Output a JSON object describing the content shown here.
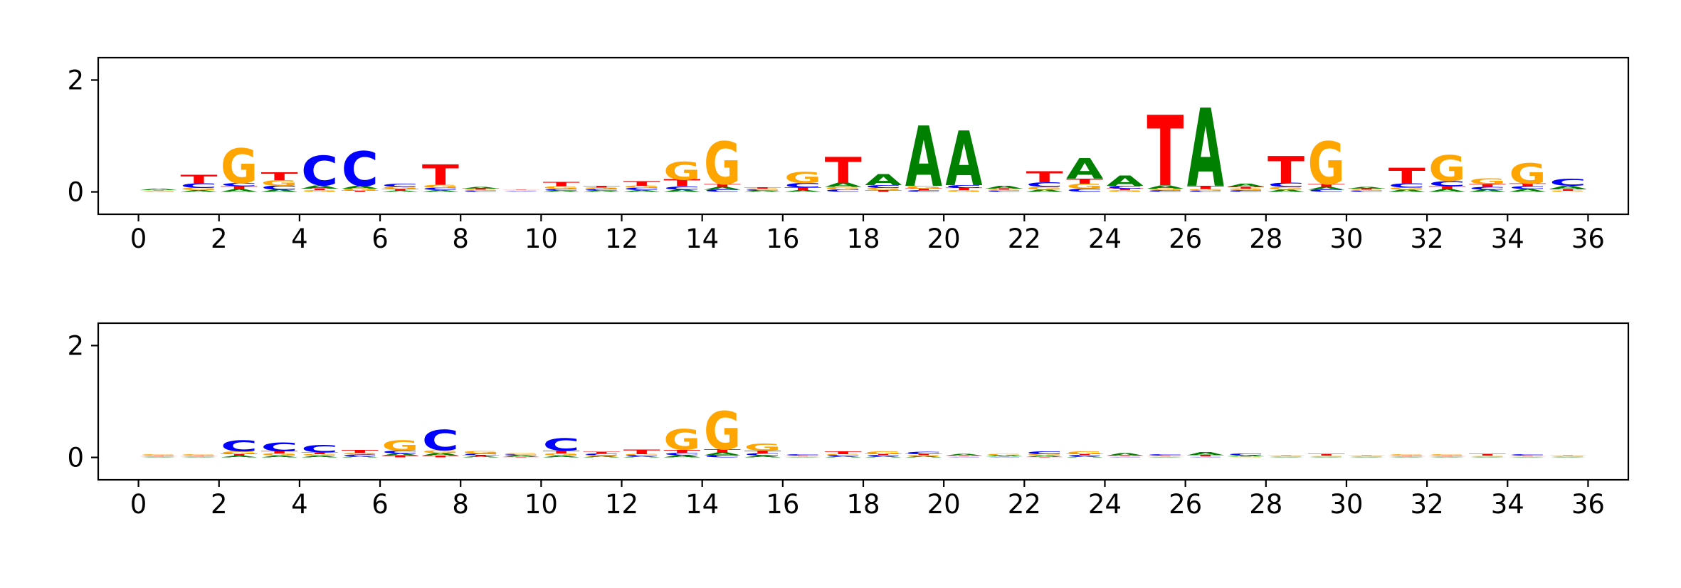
{
  "chart_data": [
    {
      "type": "sequence-logo",
      "title": "",
      "xlabel": "",
      "ylabel": "",
      "xlim": [
        -1,
        37
      ],
      "ylim": [
        -0.4,
        2.4
      ],
      "x_ticks": [
        "0",
        "2",
        "4",
        "6",
        "8",
        "10",
        "12",
        "14",
        "16",
        "18",
        "20",
        "22",
        "24",
        "26",
        "28",
        "30",
        "32",
        "34",
        "36"
      ],
      "y_ticks": [
        "0",
        "2"
      ],
      "colors": {
        "A": "#008000",
        "C": "#0000ff",
        "G": "#ffa500",
        "T": "#ff0000"
      },
      "positions": [
        {
          "x": 0,
          "letters": {
            "A": 0.02,
            "C": 0.01,
            "G": 0.01,
            "T": 0.01
          }
        },
        {
          "x": 1,
          "letters": {
            "A": 0.03,
            "C": 0.08,
            "G": 0.04,
            "T": 0.16
          }
        },
        {
          "x": 2,
          "letters": {
            "A": 0.05,
            "C": 0.06,
            "G": 0.62,
            "T": 0.05
          }
        },
        {
          "x": 3,
          "letters": {
            "A": 0.04,
            "C": 0.07,
            "G": 0.1,
            "T": 0.14
          }
        },
        {
          "x": 4,
          "letters": {
            "A": 0.06,
            "C": 0.53,
            "G": 0.03,
            "T": 0.03
          }
        },
        {
          "x": 5,
          "letters": {
            "A": 0.05,
            "C": 0.62,
            "G": 0.04,
            "T": 0.02
          }
        },
        {
          "x": 6,
          "letters": {
            "A": 0.02,
            "C": 0.06,
            "G": 0.04,
            "T": 0.03
          }
        },
        {
          "x": 7,
          "letters": {
            "A": 0.03,
            "C": 0.04,
            "G": 0.06,
            "T": 0.36
          }
        },
        {
          "x": 8,
          "letters": {
            "A": 0.03,
            "C": 0.02,
            "G": 0.02,
            "T": 0.02
          }
        },
        {
          "x": 9,
          "letters": {
            "A": 0.01,
            "C": 0.01,
            "G": 0.01,
            "T": 0.01
          }
        },
        {
          "x": 10,
          "letters": {
            "A": 0.02,
            "C": 0.03,
            "G": 0.05,
            "T": 0.07
          }
        },
        {
          "x": 11,
          "letters": {
            "A": 0.02,
            "C": 0.03,
            "G": 0.03,
            "T": 0.03
          }
        },
        {
          "x": 12,
          "letters": {
            "A": 0.03,
            "C": 0.04,
            "G": 0.04,
            "T": 0.08
          }
        },
        {
          "x": 13,
          "letters": {
            "A": 0.04,
            "C": 0.06,
            "G": 0.32,
            "T": 0.12
          }
        },
        {
          "x": 14,
          "letters": {
            "A": 0.05,
            "C": 0.04,
            "G": 0.76,
            "T": 0.05
          }
        },
        {
          "x": 15,
          "letters": {
            "A": 0.02,
            "C": 0.02,
            "G": 0.02,
            "T": 0.02
          }
        },
        {
          "x": 16,
          "letters": {
            "A": 0.03,
            "C": 0.08,
            "G": 0.2,
            "T": 0.05
          }
        },
        {
          "x": 17,
          "letters": {
            "A": 0.07,
            "C": 0.04,
            "G": 0.05,
            "T": 0.46
          }
        },
        {
          "x": 18,
          "letters": {
            "A": 0.2,
            "C": 0.05,
            "G": 0.04,
            "T": 0.03
          }
        },
        {
          "x": 19,
          "letters": {
            "A": 1.08,
            "C": 0.03,
            "G": 0.05,
            "T": 0.03
          }
        },
        {
          "x": 20,
          "letters": {
            "A": 0.98,
            "C": 0.05,
            "G": 0.03,
            "T": 0.04
          }
        },
        {
          "x": 21,
          "letters": {
            "A": 0.05,
            "C": 0.02,
            "G": 0.02,
            "T": 0.02
          }
        },
        {
          "x": 22,
          "letters": {
            "A": 0.04,
            "C": 0.08,
            "G": 0.05,
            "T": 0.2
          }
        },
        {
          "x": 23,
          "letters": {
            "A": 0.36,
            "C": 0.06,
            "G": 0.09,
            "T": 0.09
          }
        },
        {
          "x": 24,
          "letters": {
            "A": 0.18,
            "C": 0.05,
            "G": 0.03,
            "T": 0.03
          }
        },
        {
          "x": 25,
          "letters": {
            "A": 0.06,
            "C": 0.03,
            "G": 0.03,
            "T": 1.26
          }
        },
        {
          "x": 26,
          "letters": {
            "A": 1.4,
            "C": 0.02,
            "G": 0.03,
            "T": 0.06
          }
        },
        {
          "x": 27,
          "letters": {
            "A": 0.06,
            "C": 0.03,
            "G": 0.03,
            "T": 0.03
          }
        },
        {
          "x": 28,
          "letters": {
            "A": 0.04,
            "C": 0.07,
            "G": 0.05,
            "T": 0.48
          }
        },
        {
          "x": 29,
          "letters": {
            "A": 0.05,
            "C": 0.04,
            "G": 0.76,
            "T": 0.05
          }
        },
        {
          "x": 30,
          "letters": {
            "A": 0.03,
            "C": 0.02,
            "G": 0.02,
            "T": 0.02
          }
        },
        {
          "x": 31,
          "letters": {
            "A": 0.04,
            "C": 0.07,
            "G": 0.04,
            "T": 0.28
          }
        },
        {
          "x": 32,
          "letters": {
            "A": 0.05,
            "C": 0.09,
            "G": 0.46,
            "T": 0.05
          }
        },
        {
          "x": 33,
          "letters": {
            "A": 0.04,
            "C": 0.05,
            "G": 0.1,
            "T": 0.05
          }
        },
        {
          "x": 34,
          "letters": {
            "A": 0.05,
            "C": 0.05,
            "G": 0.36,
            "T": 0.05
          }
        },
        {
          "x": 35,
          "letters": {
            "A": 0.06,
            "C": 0.12,
            "G": 0.02,
            "T": 0.03
          }
        }
      ]
    },
    {
      "type": "sequence-logo",
      "title": "",
      "xlabel": "",
      "ylabel": "",
      "xlim": [
        -1,
        37
      ],
      "ylim": [
        -0.4,
        2.4
      ],
      "x_ticks": [
        "0",
        "2",
        "4",
        "6",
        "8",
        "10",
        "12",
        "14",
        "16",
        "18",
        "20",
        "22",
        "24",
        "26",
        "28",
        "30",
        "32",
        "34",
        "36"
      ],
      "y_ticks": [
        "0",
        "2"
      ],
      "colors": {
        "A": "#008000",
        "C": "#0000ff",
        "G": "#ffa500",
        "T": "#ff0000"
      },
      "positions": [
        {
          "x": 0,
          "letters": {
            "A": 0.01,
            "C": 0.01,
            "G": 0.02,
            "T": 0.01
          }
        },
        {
          "x": 1,
          "letters": {
            "A": 0.01,
            "C": 0.01,
            "G": 0.02,
            "T": 0.01
          }
        },
        {
          "x": 2,
          "letters": {
            "A": 0.03,
            "C": 0.2,
            "G": 0.05,
            "T": 0.03
          }
        },
        {
          "x": 3,
          "letters": {
            "A": 0.03,
            "C": 0.16,
            "G": 0.04,
            "T": 0.04
          }
        },
        {
          "x": 4,
          "letters": {
            "A": 0.03,
            "C": 0.13,
            "G": 0.03,
            "T": 0.03
          }
        },
        {
          "x": 5,
          "letters": {
            "A": 0.02,
            "C": 0.03,
            "G": 0.03,
            "T": 0.06
          }
        },
        {
          "x": 6,
          "letters": {
            "A": 0.04,
            "C": 0.05,
            "G": 0.18,
            "T": 0.03
          }
        },
        {
          "x": 7,
          "letters": {
            "A": 0.05,
            "C": 0.36,
            "G": 0.05,
            "T": 0.03
          }
        },
        {
          "x": 8,
          "letters": {
            "A": 0.02,
            "C": 0.03,
            "G": 0.04,
            "T": 0.02
          }
        },
        {
          "x": 9,
          "letters": {
            "A": 0.02,
            "C": 0.02,
            "G": 0.02,
            "T": 0.01
          }
        },
        {
          "x": 10,
          "letters": {
            "A": 0.03,
            "C": 0.22,
            "G": 0.04,
            "T": 0.05
          }
        },
        {
          "x": 11,
          "letters": {
            "A": 0.02,
            "C": 0.03,
            "G": 0.02,
            "T": 0.03
          }
        },
        {
          "x": 12,
          "letters": {
            "A": 0.02,
            "C": 0.02,
            "G": 0.02,
            "T": 0.08
          }
        },
        {
          "x": 13,
          "letters": {
            "A": 0.04,
            "C": 0.04,
            "G": 0.36,
            "T": 0.06
          }
        },
        {
          "x": 14,
          "letters": {
            "A": 0.05,
            "C": 0.04,
            "G": 0.68,
            "T": 0.06
          }
        },
        {
          "x": 15,
          "letters": {
            "A": 0.03,
            "C": 0.04,
            "G": 0.12,
            "T": 0.05
          }
        },
        {
          "x": 16,
          "letters": {
            "A": 0.01,
            "C": 0.02,
            "G": 0.01,
            "T": 0.01
          }
        },
        {
          "x": 17,
          "letters": {
            "A": 0.02,
            "C": 0.02,
            "G": 0.02,
            "T": 0.05
          }
        },
        {
          "x": 18,
          "letters": {
            "A": 0.02,
            "C": 0.02,
            "G": 0.05,
            "T": 0.02
          }
        },
        {
          "x": 19,
          "letters": {
            "A": 0.02,
            "C": 0.04,
            "G": 0.02,
            "T": 0.02
          }
        },
        {
          "x": 20,
          "letters": {
            "A": 0.03,
            "C": 0.01,
            "G": 0.01,
            "T": 0.01
          }
        },
        {
          "x": 21,
          "letters": {
            "A": 0.02,
            "C": 0.01,
            "G": 0.02,
            "T": 0.01
          }
        },
        {
          "x": 22,
          "letters": {
            "A": 0.02,
            "C": 0.05,
            "G": 0.03,
            "T": 0.01
          }
        },
        {
          "x": 23,
          "letters": {
            "A": 0.02,
            "C": 0.02,
            "G": 0.05,
            "T": 0.02
          }
        },
        {
          "x": 24,
          "letters": {
            "A": 0.04,
            "C": 0.01,
            "G": 0.01,
            "T": 0.01
          }
        },
        {
          "x": 25,
          "letters": {
            "A": 0.01,
            "C": 0.02,
            "G": 0.01,
            "T": 0.01
          }
        },
        {
          "x": 26,
          "letters": {
            "A": 0.06,
            "C": 0.01,
            "G": 0.01,
            "T": 0.02
          }
        },
        {
          "x": 27,
          "letters": {
            "A": 0.02,
            "C": 0.03,
            "G": 0.01,
            "T": 0.01
          }
        },
        {
          "x": 28,
          "letters": {
            "A": 0.01,
            "C": 0.01,
            "G": 0.01,
            "T": 0.01
          }
        },
        {
          "x": 29,
          "letters": {
            "A": 0.01,
            "C": 0.01,
            "G": 0.01,
            "T": 0.03
          }
        },
        {
          "x": 30,
          "letters": {
            "A": 0.01,
            "C": 0.01,
            "G": 0.01,
            "T": 0.01
          }
        },
        {
          "x": 31,
          "letters": {
            "A": 0.01,
            "C": 0.01,
            "G": 0.02,
            "T": 0.01
          }
        },
        {
          "x": 32,
          "letters": {
            "A": 0.01,
            "C": 0.01,
            "G": 0.02,
            "T": 0.01
          }
        },
        {
          "x": 33,
          "letters": {
            "A": 0.01,
            "C": 0.01,
            "G": 0.01,
            "T": 0.03
          }
        },
        {
          "x": 34,
          "letters": {
            "A": 0.01,
            "C": 0.02,
            "G": 0.01,
            "T": 0.01
          }
        },
        {
          "x": 35,
          "letters": {
            "A": 0.01,
            "C": 0.01,
            "G": 0.01,
            "T": 0.01
          }
        }
      ]
    }
  ]
}
